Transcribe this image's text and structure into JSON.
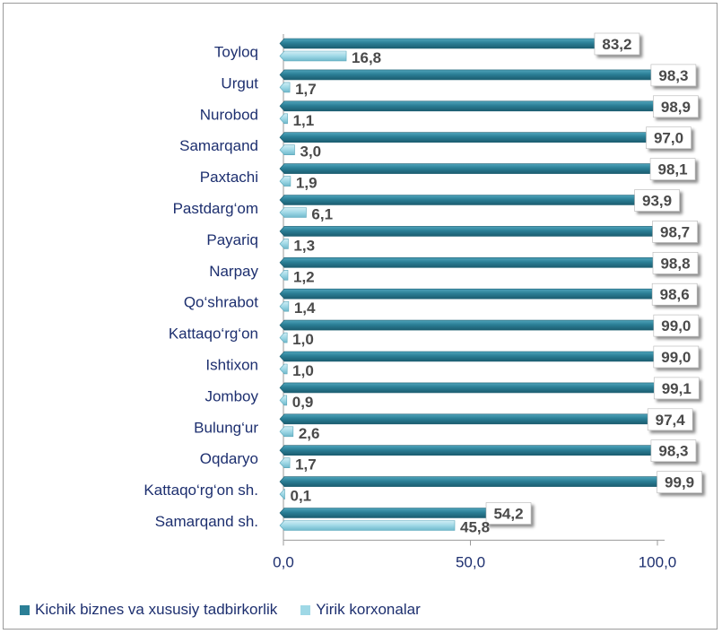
{
  "chart_data": {
    "type": "bar",
    "orientation": "horizontal",
    "categories": [
      "Toyloq",
      "Urgut",
      "Nurobod",
      "Samarqand",
      "Paxtachi",
      "Pastdarg‘om",
      "Payariq",
      "Narpay",
      "Qo‘shrabot",
      "Kattaqo‘rg‘on",
      "Ishtixon",
      "Jomboy",
      "Bulung‘ur",
      "Oqdaryo",
      "Kattaqo‘rg‘on  sh.",
      "Samarqand sh."
    ],
    "series": [
      {
        "name": "Kichik biznes va xususiy tadbirkorlik",
        "color": "#2b7f96",
        "values": [
          83.2,
          98.3,
          98.9,
          97.0,
          98.1,
          93.9,
          98.7,
          98.8,
          98.6,
          99.0,
          99.0,
          99.1,
          97.4,
          98.3,
          99.9,
          54.2
        ],
        "labels": [
          "83,2",
          "98,3",
          "98,9",
          "97,0",
          "98,1",
          "93,9",
          "98,7",
          "98,8",
          "98,6",
          "99,0",
          "99,0",
          "99,1",
          "97,4",
          "98,3",
          "99,9",
          "54,2"
        ]
      },
      {
        "name": "Yirik korxonalar",
        "color": "#9fd8e6",
        "values": [
          16.8,
          1.7,
          1.1,
          3.0,
          1.9,
          6.1,
          1.3,
          1.2,
          1.4,
          1.0,
          1.0,
          0.9,
          2.6,
          1.7,
          0.1,
          45.8
        ],
        "labels": [
          "16,8",
          "1,7",
          "1,1",
          "3,0",
          "1,9",
          "6,1",
          "1,3",
          "1,2",
          "1,4",
          "1,0",
          "1,0",
          "0,9",
          "2,6",
          "1,7",
          "0,1",
          "45,8"
        ]
      }
    ],
    "x_ticks": [
      0,
      50,
      100
    ],
    "x_tick_labels": [
      "0,0",
      "50,0",
      "100,0"
    ],
    "xlim": [
      0,
      100
    ],
    "grid": false,
    "legend_position": "bottom-left"
  },
  "legend": {
    "series1_label": "Kichik biznes va xususiy tadbirkorlik",
    "series2_label": "Yirik korxonalar"
  }
}
